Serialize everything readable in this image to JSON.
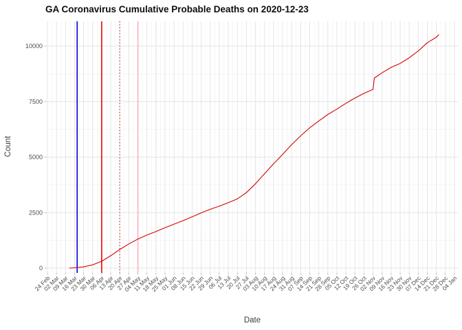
{
  "title": "GA Coronavirus Cumulative Probable Deaths on 2020-12-23",
  "chart_data": {
    "type": "line",
    "title": "GA Coronavirus Cumulative Probable Deaths on 2020-12-23",
    "xlabel": "Date",
    "ylabel": "Count",
    "legend_position": "none",
    "grid": true,
    "background": "#ffffff",
    "grid_major_color": "#e4e4e4",
    "grid_minor_color": "#f2f2f2",
    "tick_label_color": "#4d4d4d",
    "ylim": [
      0,
      10960
    ],
    "y_ticks": [
      0,
      2500,
      5000,
      7500,
      10000
    ],
    "y_minor_ticks": [
      1250,
      3750,
      6250,
      8750
    ],
    "x_ticks": [
      {
        "date": "2020-02-24",
        "label": "24 Feb"
      },
      {
        "date": "2020-03-02",
        "label": "02 Mar"
      },
      {
        "date": "2020-03-09",
        "label": "09 Mar"
      },
      {
        "date": "2020-03-16",
        "label": "16 Mar"
      },
      {
        "date": "2020-03-23",
        "label": "23 Mar"
      },
      {
        "date": "2020-03-30",
        "label": "30 Mar"
      },
      {
        "date": "2020-04-06",
        "label": "06 Apr"
      },
      {
        "date": "2020-04-13",
        "label": "13 Apr"
      },
      {
        "date": "2020-04-20",
        "label": "20 Apr"
      },
      {
        "date": "2020-04-27",
        "label": "27 Apr"
      },
      {
        "date": "2020-05-04",
        "label": "04 May"
      },
      {
        "date": "2020-05-11",
        "label": "11 May"
      },
      {
        "date": "2020-05-18",
        "label": "18 May"
      },
      {
        "date": "2020-05-25",
        "label": "25 May"
      },
      {
        "date": "2020-06-01",
        "label": "01 Jun"
      },
      {
        "date": "2020-06-08",
        "label": "08 Jun"
      },
      {
        "date": "2020-06-15",
        "label": "15 Jun"
      },
      {
        "date": "2020-06-22",
        "label": "22 Jun"
      },
      {
        "date": "2020-06-29",
        "label": "29 Jun"
      },
      {
        "date": "2020-07-06",
        "label": "06 Jul"
      },
      {
        "date": "2020-07-13",
        "label": "13 Jul"
      },
      {
        "date": "2020-07-20",
        "label": "20 Jul"
      },
      {
        "date": "2020-07-27",
        "label": "27 Jul"
      },
      {
        "date": "2020-08-03",
        "label": "03 Aug"
      },
      {
        "date": "2020-08-10",
        "label": "10 Aug"
      },
      {
        "date": "2020-08-17",
        "label": "17 Aug"
      },
      {
        "date": "2020-08-24",
        "label": "24 Aug"
      },
      {
        "date": "2020-08-31",
        "label": "31 Aug"
      },
      {
        "date": "2020-09-07",
        "label": "07 Sep"
      },
      {
        "date": "2020-09-14",
        "label": "14 Sep"
      },
      {
        "date": "2020-09-21",
        "label": "21 Sep"
      },
      {
        "date": "2020-09-28",
        "label": "28 Sep"
      },
      {
        "date": "2020-10-05",
        "label": "05 Oct"
      },
      {
        "date": "2020-10-12",
        "label": "12 Oct"
      },
      {
        "date": "2020-10-19",
        "label": "19 Oct"
      },
      {
        "date": "2020-10-26",
        "label": "26 Oct"
      },
      {
        "date": "2020-11-02",
        "label": "02 Nov"
      },
      {
        "date": "2020-11-09",
        "label": "09 Nov"
      },
      {
        "date": "2020-11-16",
        "label": "16 Nov"
      },
      {
        "date": "2020-11-23",
        "label": "23 Nov"
      },
      {
        "date": "2020-11-30",
        "label": "30 Nov"
      },
      {
        "date": "2020-12-07",
        "label": "07 Dec"
      },
      {
        "date": "2020-12-14",
        "label": "14 Dec"
      },
      {
        "date": "2020-12-21",
        "label": "21 Dec"
      },
      {
        "date": "2020-12-28",
        "label": "28 Dec"
      },
      {
        "date": "2021-01-04",
        "label": "04 Jan"
      }
    ],
    "reference_lines": [
      {
        "date": "2020-03-18",
        "color": "#0000dd",
        "style": "solid",
        "width": 1.6
      },
      {
        "date": "2020-04-06",
        "color": "#e60000",
        "style": "solid",
        "width": 1.6
      },
      {
        "date": "2020-04-20",
        "color": "#d40000",
        "style": "dotted",
        "width": 1.2
      },
      {
        "date": "2020-05-04",
        "color": "#ffb6c1",
        "style": "solid",
        "width": 1.8
      },
      {
        "date": "2020-05-18",
        "color": "#ffc9d2",
        "style": "dotted",
        "width": 1.2
      }
    ],
    "series": [
      {
        "name": "cumulative-probable-deaths",
        "color": "#d40000",
        "points": [
          {
            "date": "2020-03-12",
            "value": 0
          },
          {
            "date": "2020-03-16",
            "value": 15
          },
          {
            "date": "2020-03-23",
            "value": 55
          },
          {
            "date": "2020-03-30",
            "value": 150
          },
          {
            "date": "2020-04-06",
            "value": 310
          },
          {
            "date": "2020-04-13",
            "value": 560
          },
          {
            "date": "2020-04-20",
            "value": 840
          },
          {
            "date": "2020-04-27",
            "value": 1090
          },
          {
            "date": "2020-05-04",
            "value": 1310
          },
          {
            "date": "2020-05-11",
            "value": 1490
          },
          {
            "date": "2020-05-18",
            "value": 1650
          },
          {
            "date": "2020-05-25",
            "value": 1820
          },
          {
            "date": "2020-06-01",
            "value": 1980
          },
          {
            "date": "2020-06-08",
            "value": 2140
          },
          {
            "date": "2020-06-15",
            "value": 2310
          },
          {
            "date": "2020-06-22",
            "value": 2490
          },
          {
            "date": "2020-06-29",
            "value": 2650
          },
          {
            "date": "2020-07-06",
            "value": 2790
          },
          {
            "date": "2020-07-13",
            "value": 2950
          },
          {
            "date": "2020-07-20",
            "value": 3120
          },
          {
            "date": "2020-07-27",
            "value": 3400
          },
          {
            "date": "2020-08-03",
            "value": 3800
          },
          {
            "date": "2020-08-10",
            "value": 4250
          },
          {
            "date": "2020-08-17",
            "value": 4700
          },
          {
            "date": "2020-08-24",
            "value": 5120
          },
          {
            "date": "2020-08-31",
            "value": 5560
          },
          {
            "date": "2020-09-07",
            "value": 5960
          },
          {
            "date": "2020-09-14",
            "value": 6320
          },
          {
            "date": "2020-09-21",
            "value": 6630
          },
          {
            "date": "2020-09-28",
            "value": 6920
          },
          {
            "date": "2020-10-05",
            "value": 7160
          },
          {
            "date": "2020-10-12",
            "value": 7420
          },
          {
            "date": "2020-10-19",
            "value": 7660
          },
          {
            "date": "2020-10-26",
            "value": 7870
          },
          {
            "date": "2020-11-02",
            "value": 8050
          },
          {
            "date": "2020-11-03",
            "value": 8560
          },
          {
            "date": "2020-11-09",
            "value": 8800
          },
          {
            "date": "2020-11-16",
            "value": 9040
          },
          {
            "date": "2020-11-23",
            "value": 9220
          },
          {
            "date": "2020-11-30",
            "value": 9470
          },
          {
            "date": "2020-12-07",
            "value": 9780
          },
          {
            "date": "2020-12-14",
            "value": 10150
          },
          {
            "date": "2020-12-21",
            "value": 10400
          },
          {
            "date": "2020-12-23",
            "value": 10520
          }
        ]
      }
    ]
  }
}
